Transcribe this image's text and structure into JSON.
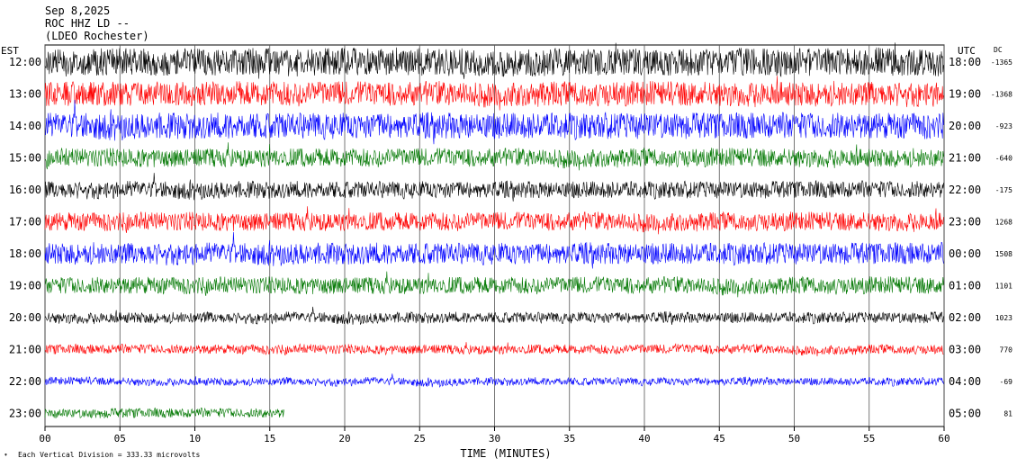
{
  "header": {
    "date": "Sep 8,2025",
    "station": "ROC HHZ LD --",
    "network": "(LDEO Rochester)"
  },
  "left_zone": "EST",
  "right_zone": "UTC",
  "dc_header": "DC",
  "footer": {
    "scale_note": "Each Vertical Division =  333.33 microvolts"
  },
  "chart_data": {
    "type": "line",
    "title": "",
    "xlabel": "TIME (MINUTES)",
    "ylabel": "",
    "xlim": [
      0,
      60
    ],
    "x_ticks": [
      "00",
      "05",
      "10",
      "15",
      "20",
      "25",
      "30",
      "35",
      "40",
      "45",
      "50",
      "55",
      "60"
    ],
    "trace_colors": [
      "#000000",
      "#ff0000",
      "#0000ff",
      "#007700"
    ],
    "grid": "vertical lines every 5 minutes",
    "rows": [
      {
        "est": "12:00",
        "utc": "18:00",
        "dc": "-1365",
        "color": "#000000",
        "amplitude": 0.9
      },
      {
        "est": "13:00",
        "utc": "19:00",
        "dc": "-1368",
        "color": "#ff0000",
        "amplitude": 0.8
      },
      {
        "est": "14:00",
        "utc": "20:00",
        "dc": "-923",
        "color": "#0000ff",
        "amplitude": 0.85
      },
      {
        "est": "15:00",
        "utc": "21:00",
        "dc": "-640",
        "color": "#007700",
        "amplitude": 0.6
      },
      {
        "est": "16:00",
        "utc": "22:00",
        "dc": "-175",
        "color": "#000000",
        "amplitude": 0.55
      },
      {
        "est": "17:00",
        "utc": "23:00",
        "dc": "1268",
        "color": "#ff0000",
        "amplitude": 0.6
      },
      {
        "est": "18:00",
        "utc": "00:00",
        "dc": "1508",
        "color": "#0000ff",
        "amplitude": 0.7
      },
      {
        "est": "19:00",
        "utc": "01:00",
        "dc": "1101",
        "color": "#007700",
        "amplitude": 0.55
      },
      {
        "est": "20:00",
        "utc": "02:00",
        "dc": "1023",
        "color": "#000000",
        "amplitude": 0.35
      },
      {
        "est": "21:00",
        "utc": "03:00",
        "dc": "770",
        "color": "#ff0000",
        "amplitude": 0.3
      },
      {
        "est": "22:00",
        "utc": "04:00",
        "dc": "-69",
        "color": "#0000ff",
        "amplitude": 0.25
      },
      {
        "est": "23:00",
        "utc": "05:00",
        "dc": "81",
        "color": "#007700",
        "amplitude": 0.3
      }
    ],
    "partial_last_row_end_minute": 16
  }
}
